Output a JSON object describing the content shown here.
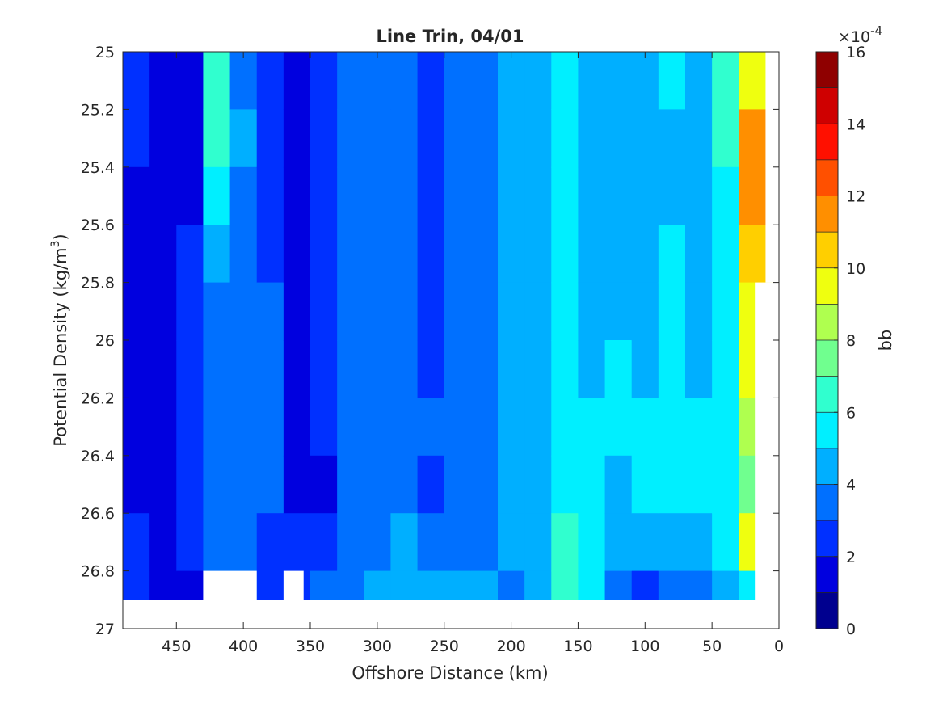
{
  "chart_data": {
    "type": "heatmap",
    "subtype": "filled-contour",
    "title": "Line Trin, 04/01",
    "xlabel": "Offshore Distance (km)",
    "ylabel_main": "Potential Density (kg/m",
    "ylabel_sup": "3",
    "ylabel_end": ")",
    "xlim": [
      490,
      0
    ],
    "x_reversed": true,
    "ylim": [
      25,
      27
    ],
    "y_reversed": true,
    "x_ticks": [
      450,
      400,
      350,
      300,
      250,
      200,
      150,
      100,
      50,
      0
    ],
    "x_tick_labels": [
      "450",
      "400",
      "350",
      "300",
      "250",
      "200",
      "150",
      "100",
      "50",
      "0"
    ],
    "y_ticks": [
      25,
      25.2,
      25.4,
      25.6,
      25.8,
      26,
      26.2,
      26.4,
      26.6,
      26.8,
      27
    ],
    "y_tick_labels": [
      "25",
      "25.2",
      "25.4",
      "25.6",
      "25.8",
      "26",
      "26.2",
      "26.4",
      "26.6",
      "26.8",
      "27"
    ],
    "grid": false,
    "colorbar": {
      "label": "bb",
      "scale_base": "×10",
      "scale_exp": "-4",
      "clim": [
        0,
        16
      ],
      "ticks": [
        0,
        2,
        4,
        6,
        8,
        10,
        12,
        14,
        16
      ],
      "tick_labels": [
        "0",
        "2",
        "4",
        "6",
        "8",
        "10",
        "12",
        "14",
        "16"
      ],
      "levels": [
        0,
        1,
        2,
        3,
        4,
        5,
        6,
        7,
        8,
        9,
        10,
        11,
        12,
        13,
        14,
        15,
        16
      ],
      "colors": [
        "#00008F",
        "#0000DF",
        "#0030FF",
        "#0070FF",
        "#00AFFF",
        "#00EFFF",
        "#30FFCF",
        "#70FF8F",
        "#AFFF4F",
        "#EFFF0F",
        "#FFCF00",
        "#FF8F00",
        "#FF5000",
        "#FF1000",
        "#CF0000",
        "#8F0000"
      ]
    },
    "columns": [
      {
        "x": 480,
        "values": [
          2.5,
          2.2,
          1.8,
          1.8,
          1.8,
          1.8,
          1.8,
          1.8,
          2.5,
          2.5
        ]
      },
      {
        "x": 460,
        "values": [
          1.8,
          1.8,
          1.8,
          1.8,
          1.8,
          1.8,
          1.8,
          1.8,
          1.8,
          1.8
        ]
      },
      {
        "x": 440,
        "values": [
          1.8,
          1.8,
          1.8,
          2.5,
          2.5,
          2.5,
          2.5,
          2.5,
          2.5,
          1.8
        ]
      },
      {
        "x": 420,
        "values": [
          6.5,
          6,
          5.5,
          4.5,
          3.5,
          3.5,
          3.5,
          3.5,
          3.5,
          3.5
        ]
      },
      {
        "x": 400,
        "values": [
          3.5,
          4.2,
          3.5,
          3.5,
          3.5,
          3.5,
          3.5,
          3.5,
          3.5,
          3.5
        ]
      },
      {
        "x": 380,
        "values": [
          2.5,
          2.5,
          2.5,
          2.5,
          3.5,
          3.5,
          3.5,
          3.5,
          2.5,
          2.5
        ]
      },
      {
        "x": 360,
        "values": [
          1.8,
          1.8,
          1.8,
          1.8,
          1.8,
          1.8,
          1.8,
          1.8,
          2.5,
          2.5
        ]
      },
      {
        "x": 340,
        "values": [
          2.5,
          2.5,
          2.5,
          2.5,
          2.5,
          2.5,
          2.5,
          1.8,
          2.5,
          3.5
        ]
      },
      {
        "x": 320,
        "values": [
          3.5,
          3.5,
          3.5,
          3.5,
          3.5,
          3.5,
          3.5,
          3.5,
          3.5,
          3.5
        ]
      },
      {
        "x": 300,
        "values": [
          3.5,
          3.5,
          3.5,
          3.5,
          3.5,
          3.5,
          3.5,
          3.5,
          3.5,
          4.5
        ]
      },
      {
        "x": 280,
        "values": [
          3.5,
          3.5,
          3.5,
          3.5,
          3.5,
          3.5,
          3.5,
          3.5,
          4.5,
          4.5
        ]
      },
      {
        "x": 260,
        "values": [
          2.5,
          2.5,
          2.5,
          2.5,
          2.5,
          2.5,
          3.5,
          2.5,
          3.5,
          4.5
        ]
      },
      {
        "x": 240,
        "values": [
          3.5,
          3.5,
          3.5,
          3.5,
          3.5,
          3.5,
          3.5,
          3.5,
          3.5,
          4.5
        ]
      },
      {
        "x": 220,
        "values": [
          3.5,
          3.5,
          3.5,
          3.5,
          3.5,
          3.5,
          3.5,
          3.5,
          3.5,
          4.5
        ]
      },
      {
        "x": 200,
        "values": [
          4.5,
          4.5,
          4.5,
          4.5,
          4.5,
          4.5,
          4.5,
          4.5,
          4.5,
          3.5
        ]
      },
      {
        "x": 180,
        "values": [
          4.5,
          4.5,
          4.5,
          4.5,
          4.5,
          4.5,
          4.5,
          4.5,
          4.5,
          4.5
        ]
      },
      {
        "x": 160,
        "values": [
          5.5,
          5.5,
          5.5,
          5.5,
          5.5,
          5.5,
          5.5,
          5.5,
          6.5,
          6
        ]
      },
      {
        "x": 140,
        "values": [
          4.5,
          4.5,
          4.5,
          4.5,
          4.5,
          4.5,
          5.5,
          5.5,
          5.5,
          5.5
        ]
      },
      {
        "x": 120,
        "values": [
          4.5,
          4.5,
          4.5,
          4.5,
          4.5,
          5.5,
          5.5,
          4.5,
          4.5,
          3.5
        ]
      },
      {
        "x": 100,
        "values": [
          4.5,
          4.5,
          4.5,
          4.5,
          4.5,
          4.5,
          5.5,
          5.5,
          4.5,
          2.5
        ]
      },
      {
        "x": 80,
        "values": [
          5.5,
          4.5,
          4.5,
          5.5,
          5.5,
          5.5,
          5.5,
          5.5,
          4.5,
          3.5
        ]
      },
      {
        "x": 60,
        "values": [
          4.5,
          4.5,
          4.5,
          4.5,
          4.5,
          4.5,
          5.5,
          5.5,
          4.5,
          3.5
        ]
      },
      {
        "x": 40,
        "values": [
          6.5,
          6,
          5.5,
          5.5,
          5.5,
          5.5,
          5.5,
          5.5,
          5.5,
          4.5
        ]
      },
      {
        "x": 20,
        "values": [
          9.5,
          11.5,
          11.5,
          10.5,
          9.5,
          9.5,
          8.5,
          7.5,
          9.5,
          5.5
        ]
      }
    ],
    "missing_regions": [
      {
        "x_range": [
          490,
          0
        ],
        "y_range": [
          26.9,
          27
        ]
      },
      {
        "x_range": [
          430,
          390
        ],
        "y_range": [
          26.8,
          26.9
        ]
      },
      {
        "x_range": [
          370,
          355
        ],
        "y_range": [
          26.8,
          26.9
        ]
      },
      {
        "x_range": [
          18,
          0
        ],
        "y_range": [
          25.8,
          27
        ]
      },
      {
        "x_range": [
          10,
          0
        ],
        "y_range": [
          25,
          25.8
        ]
      }
    ]
  }
}
